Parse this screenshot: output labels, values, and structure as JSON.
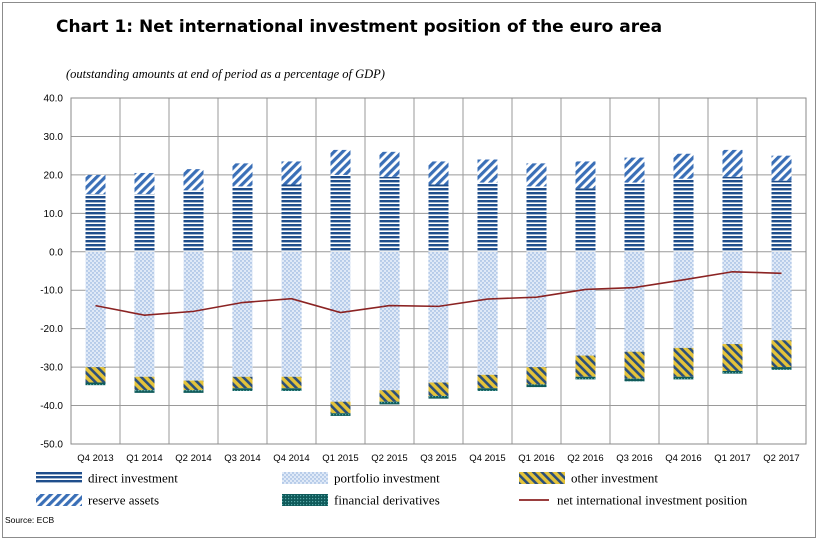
{
  "chart_data": {
    "type": "bar",
    "stacked": true,
    "title": "Chart 1: Net international investment position of the euro area",
    "subtitle": "(outstanding amounts at end of period as a percentage of GDP)",
    "source": "Source: ECB",
    "categories": [
      "Q4 2013",
      "Q1 2014",
      "Q2 2014",
      "Q3 2014",
      "Q4 2014",
      "Q1 2015",
      "Q2 2015",
      "Q3 2015",
      "Q4 2015",
      "Q1 2016",
      "Q2 2016",
      "Q3 2016",
      "Q4 2016",
      "Q1 2017",
      "Q2 2017"
    ],
    "ylim": [
      -50,
      40
    ],
    "yticks": [
      -50,
      -40,
      -30,
      -20,
      -10,
      0,
      10,
      20,
      30,
      40
    ],
    "ytick_labels": [
      "-50.0",
      "-40.0",
      "-30.0",
      "-20.0",
      "-10.0",
      "0.0",
      "10.0",
      "20.0",
      "30.0",
      "40.0"
    ],
    "grid": true,
    "legend_position": "bottom",
    "series": [
      {
        "name": "direct investment",
        "kind": "bar",
        "pattern": "hstripes",
        "color": "#1f4e8c",
        "values": [
          15.0,
          15.0,
          16.0,
          17.0,
          17.5,
          20.0,
          19.5,
          17.5,
          18.0,
          17.0,
          16.5,
          18.0,
          19.0,
          19.5,
          18.5
        ]
      },
      {
        "name": "reserve assets",
        "kind": "bar",
        "pattern": "diagonal",
        "color": "#3a6fb7",
        "values": [
          5.0,
          5.5,
          5.5,
          6.0,
          6.0,
          6.5,
          6.5,
          6.0,
          6.0,
          6.0,
          7.0,
          6.5,
          6.5,
          7.0,
          6.5
        ]
      },
      {
        "name": "portfolio investment",
        "kind": "bar",
        "pattern": "dots",
        "color": "#c3d6ef",
        "values": [
          -30.0,
          -32.5,
          -33.5,
          -32.5,
          -32.5,
          -39.0,
          -36.0,
          -34.0,
          -32.0,
          -30.0,
          -27.0,
          -26.0,
          -25.0,
          -24.0,
          -23.0
        ]
      },
      {
        "name": "other investment",
        "kind": "bar",
        "pattern": "yellow-diagonal",
        "color": "#c8b23c",
        "values": [
          -4.0,
          -3.5,
          -2.5,
          -3.0,
          -3.0,
          -3.0,
          -3.0,
          -3.5,
          -3.5,
          -4.5,
          -5.5,
          -7.0,
          -7.5,
          -7.0,
          -7.0
        ]
      },
      {
        "name": "financial derivatives",
        "kind": "bar",
        "pattern": "teal-grid",
        "color": "#1a6b6b",
        "values": [
          -0.7,
          -0.7,
          -0.7,
          -0.7,
          -0.7,
          -0.7,
          -0.7,
          -0.7,
          -0.7,
          -0.7,
          -0.7,
          -0.7,
          -0.7,
          -0.7,
          -0.7
        ]
      },
      {
        "name": "net international investment position",
        "kind": "line",
        "color": "#8b2323",
        "values": [
          -14.0,
          -16.5,
          -15.5,
          -13.2,
          -12.2,
          -15.8,
          -14.0,
          -14.2,
          -12.3,
          -11.8,
          -9.8,
          -9.3,
          -7.3,
          -5.2,
          -5.6
        ]
      }
    ],
    "legend": [
      {
        "name": "direct investment",
        "pattern": "hstripes"
      },
      {
        "name": "portfolio investment",
        "pattern": "dots"
      },
      {
        "name": "other investment",
        "pattern": "yellow-diagonal"
      },
      {
        "name": "reserve assets",
        "pattern": "diagonal"
      },
      {
        "name": "financial derivatives",
        "pattern": "teal-grid"
      },
      {
        "name": "net international investment position",
        "pattern": "line"
      }
    ]
  }
}
